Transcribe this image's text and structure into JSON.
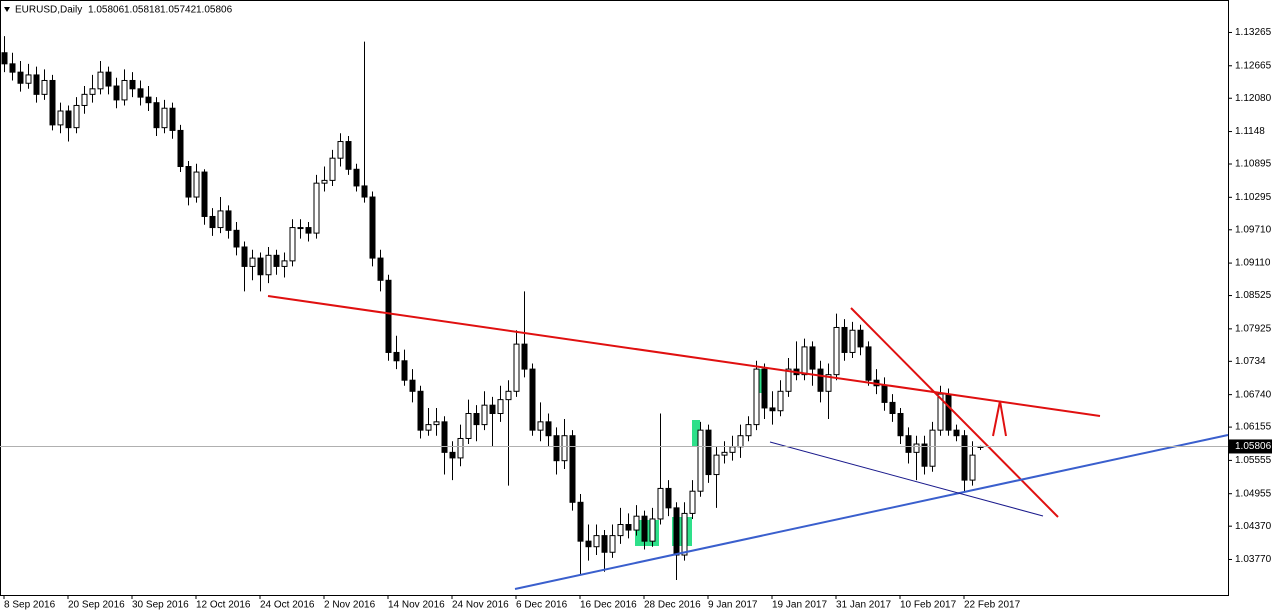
{
  "chart_data": {
    "type": "candlestick",
    "symbol": "EURUSD,Daily",
    "ylim": [
      1.0313,
      1.1385
    ],
    "yticks": [
      1.13265,
      1.12665,
      {
        "value": 1.1208,
        "label": "1.12080"
      },
      1.1148,
      1.10895,
      1.10295,
      {
        "value": 1.0971,
        "label": "1.09710"
      },
      {
        "value": 1.0911,
        "label": "1.09110"
      },
      1.08525,
      1.07925,
      1.0734,
      {
        "value": 1.0674,
        "label": "1.06740"
      },
      1.06155,
      1.05555,
      1.04955,
      {
        "value": 1.0437,
        "label": "1.04370"
      },
      {
        "value": 1.0377,
        "label": "1.03770"
      }
    ],
    "grid": false,
    "up_color": "#ffffff",
    "down_color": "#000000",
    "outline_color": "#000000",
    "categories": [
      "8 Sep 2016",
      null,
      null,
      null,
      null,
      null,
      null,
      null,
      "20 Sep 2016",
      null,
      null,
      null,
      null,
      null,
      null,
      null,
      "30 Sep 2016",
      null,
      null,
      null,
      null,
      null,
      null,
      null,
      "12 Oct 2016",
      null,
      null,
      null,
      null,
      null,
      null,
      null,
      "24 Oct 2016",
      null,
      null,
      null,
      null,
      null,
      null,
      null,
      "2 Nov 2016",
      null,
      null,
      null,
      null,
      null,
      null,
      null,
      "14 Nov 2016",
      null,
      null,
      null,
      null,
      null,
      null,
      null,
      "24 Nov 2016",
      null,
      null,
      null,
      null,
      null,
      null,
      null,
      "6 Dec 2016",
      null,
      null,
      null,
      null,
      null,
      null,
      null,
      "16 Dec 2016",
      null,
      null,
      null,
      null,
      null,
      null,
      null,
      "28 Dec 2016",
      null,
      null,
      null,
      null,
      null,
      null,
      null,
      "9 Jan 2017",
      null,
      null,
      null,
      null,
      null,
      null,
      null,
      "19 Jan 2017",
      null,
      null,
      null,
      null,
      null,
      null,
      null,
      "31 Jan 2017",
      null,
      null,
      null,
      null,
      null,
      null,
      null,
      "10 Feb 2017",
      null,
      null,
      null,
      null,
      null,
      null,
      null,
      "22 Feb 2017",
      null,
      null
    ],
    "ohlc": [
      [
        1.129,
        1.132,
        1.1255,
        1.127
      ],
      [
        1.127,
        1.129,
        1.124,
        1.1255
      ],
      [
        1.1255,
        1.1275,
        1.122,
        1.1235
      ],
      [
        1.1235,
        1.127,
        1.1225,
        1.125
      ],
      [
        1.125,
        1.1265,
        1.12,
        1.1215
      ],
      [
        1.1215,
        1.126,
        1.1205,
        1.124
      ],
      [
        1.124,
        1.125,
        1.115,
        1.116
      ],
      [
        1.116,
        1.12,
        1.1145,
        1.1185
      ],
      [
        1.1185,
        1.1195,
        1.113,
        1.1155
      ],
      [
        1.1155,
        1.121,
        1.1145,
        1.1195
      ],
      [
        1.1195,
        1.123,
        1.118,
        1.1215
      ],
      [
        1.1215,
        1.125,
        1.12,
        1.1225
      ],
      [
        1.1225,
        1.1275,
        1.1215,
        1.1255
      ],
      [
        1.1255,
        1.1265,
        1.1215,
        1.123
      ],
      [
        1.123,
        1.1245,
        1.119,
        1.1205
      ],
      [
        1.1205,
        1.126,
        1.1195,
        1.124
      ],
      [
        1.124,
        1.1255,
        1.121,
        1.1225
      ],
      [
        1.1225,
        1.124,
        1.1195,
        1.121
      ],
      [
        1.121,
        1.123,
        1.1185,
        1.12
      ],
      [
        1.12,
        1.121,
        1.114,
        1.1155
      ],
      [
        1.1155,
        1.1205,
        1.1145,
        1.119
      ],
      [
        1.119,
        1.12,
        1.1135,
        1.115
      ],
      [
        1.115,
        1.116,
        1.1075,
        1.1085
      ],
      [
        1.1085,
        1.1095,
        1.1015,
        1.103
      ],
      [
        1.103,
        1.109,
        1.102,
        1.1075
      ],
      [
        1.1075,
        1.108,
        1.098,
        1.0995
      ],
      [
        1.0995,
        1.101,
        1.096,
        1.0975
      ],
      [
        1.0975,
        1.103,
        1.0965,
        1.1005
      ],
      [
        1.1005,
        1.1015,
        1.0955,
        1.097
      ],
      [
        1.097,
        1.0985,
        1.0925,
        1.094
      ],
      [
        1.094,
        1.095,
        1.086,
        1.0905
      ],
      [
        1.0905,
        1.0935,
        1.088,
        1.092
      ],
      [
        1.092,
        1.093,
        1.086,
        1.089
      ],
      [
        1.089,
        1.094,
        1.0875,
        1.0925
      ],
      [
        1.0925,
        1.0935,
        1.089,
        1.0905
      ],
      [
        1.0905,
        1.093,
        1.0885,
        1.0915
      ],
      [
        1.0915,
        1.099,
        1.0905,
        1.0975
      ],
      [
        1.0975,
        1.099,
        1.0955,
        1.0975
      ],
      [
        1.0975,
        1.0985,
        1.095,
        1.0965
      ],
      [
        1.0965,
        1.107,
        1.0955,
        1.1055
      ],
      [
        1.1055,
        1.1085,
        1.104,
        1.106
      ],
      [
        1.106,
        1.1115,
        1.105,
        1.11
      ],
      [
        1.11,
        1.1145,
        1.1085,
        1.113
      ],
      [
        1.113,
        1.114,
        1.107,
        1.108
      ],
      [
        1.108,
        1.109,
        1.104,
        1.105
      ],
      [
        1.105,
        1.131,
        1.102,
        1.103
      ],
      [
        1.103,
        1.104,
        1.0905,
        1.092
      ],
      [
        1.092,
        1.0935,
        1.086,
        1.088
      ],
      [
        1.088,
        1.089,
        1.0735,
        1.075
      ],
      [
        1.075,
        1.078,
        1.072,
        1.0735
      ],
      [
        1.0735,
        1.0755,
        1.069,
        1.07
      ],
      [
        1.07,
        1.072,
        1.066,
        1.068
      ],
      [
        1.068,
        1.069,
        1.0595,
        1.061
      ],
      [
        1.061,
        1.065,
        1.06,
        1.062
      ],
      [
        1.062,
        1.065,
        1.06,
        1.0625
      ],
      [
        1.0625,
        1.0635,
        1.053,
        1.057
      ],
      [
        1.057,
        1.059,
        1.052,
        1.056
      ],
      [
        1.056,
        1.062,
        1.0545,
        1.0595
      ],
      [
        1.0595,
        1.0665,
        1.0585,
        1.064
      ],
      [
        1.064,
        1.0655,
        1.059,
        1.062
      ],
      [
        1.062,
        1.068,
        1.061,
        1.0655
      ],
      [
        1.0655,
        1.067,
        1.058,
        1.064
      ],
      [
        1.064,
        1.069,
        1.0625,
        1.0665
      ],
      [
        1.0665,
        1.07,
        1.051,
        1.068
      ],
      [
        1.068,
        1.079,
        1.067,
        1.0765
      ],
      [
        1.0765,
        1.086,
        1.0705,
        1.072
      ],
      [
        1.072,
        1.073,
        1.06,
        1.061
      ],
      [
        1.061,
        1.066,
        1.059,
        1.0625
      ],
      [
        1.0625,
        1.064,
        1.058,
        1.06
      ],
      [
        1.06,
        1.0615,
        1.053,
        1.0555
      ],
      [
        1.0555,
        1.063,
        1.054,
        1.06
      ],
      [
        1.06,
        1.061,
        1.0465,
        1.048
      ],
      [
        1.048,
        1.0495,
        1.035,
        1.041
      ],
      [
        1.041,
        1.044,
        1.0375,
        1.04
      ],
      [
        1.04,
        1.044,
        1.0385,
        1.042
      ],
      [
        1.042,
        1.043,
        1.0355,
        1.039
      ],
      [
        1.039,
        1.044,
        1.038,
        1.042
      ],
      [
        1.042,
        1.047,
        1.0405,
        1.044
      ],
      [
        1.044,
        1.046,
        1.0415,
        1.043
      ],
      [
        1.043,
        1.0475,
        1.042,
        1.0455
      ],
      [
        1.0455,
        1.0465,
        1.0395,
        1.041
      ],
      [
        1.041,
        1.047,
        1.04,
        1.045
      ],
      [
        1.045,
        1.064,
        1.044,
        1.0505
      ],
      [
        1.0505,
        1.052,
        1.0455,
        1.047
      ],
      [
        1.047,
        1.048,
        1.034,
        1.0385
      ],
      [
        1.0385,
        1.048,
        1.0375,
        1.046
      ],
      [
        1.046,
        1.052,
        1.045,
        1.05
      ],
      [
        1.05,
        1.0625,
        1.049,
        1.061
      ],
      [
        1.061,
        1.062,
        1.0515,
        1.053
      ],
      [
        1.053,
        1.058,
        1.047,
        1.0565
      ],
      [
        1.0565,
        1.059,
        1.055,
        1.057
      ],
      [
        1.057,
        1.06,
        1.0555,
        1.058
      ],
      [
        1.058,
        1.062,
        1.056,
        1.06
      ],
      [
        1.06,
        1.0635,
        1.059,
        1.062
      ],
      [
        1.062,
        1.0735,
        1.061,
        1.072
      ],
      [
        1.072,
        1.073,
        1.063,
        1.065
      ],
      [
        1.065,
        1.068,
        1.062,
        1.0645
      ],
      [
        1.0645,
        1.07,
        1.0635,
        1.068
      ],
      [
        1.068,
        1.074,
        1.067,
        1.072
      ],
      [
        1.072,
        1.077,
        1.07,
        1.071
      ],
      [
        1.071,
        1.0775,
        1.07,
        1.076
      ],
      [
        1.076,
        1.077,
        1.069,
        1.072
      ],
      [
        1.072,
        1.0735,
        1.066,
        1.068
      ],
      [
        1.068,
        1.073,
        1.063,
        1.071
      ],
      [
        1.071,
        1.082,
        1.07,
        1.0795
      ],
      [
        1.0795,
        1.081,
        1.0735,
        1.075
      ],
      [
        1.075,
        1.0805,
        1.074,
        1.079
      ],
      [
        1.079,
        1.08,
        1.0745,
        1.076
      ],
      [
        1.076,
        1.077,
        1.069,
        1.07
      ],
      [
        1.07,
        1.072,
        1.0675,
        1.069
      ],
      [
        1.069,
        1.0705,
        1.0645,
        1.066
      ],
      [
        1.066,
        1.0675,
        1.0625,
        1.064
      ],
      [
        1.064,
        1.065,
        1.0585,
        1.06
      ],
      [
        1.06,
        1.0615,
        1.055,
        1.057
      ],
      [
        1.057,
        1.06,
        1.052,
        1.0585
      ],
      [
        1.0585,
        1.06,
        1.053,
        1.0545
      ],
      [
        1.0545,
        1.0625,
        1.0535,
        1.061
      ],
      [
        1.061,
        1.069,
        1.06,
        1.0675
      ],
      [
        1.0675,
        1.0685,
        1.06,
        1.061
      ],
      [
        1.061,
        1.062,
        1.059,
        1.06
      ],
      [
        1.06,
        1.061,
        1.05,
        1.052
      ],
      [
        1.052,
        1.059,
        1.051,
        1.0565
      ],
      [
        1.05806,
        1.05818,
        1.05742,
        1.05806
      ]
    ]
  }
}
